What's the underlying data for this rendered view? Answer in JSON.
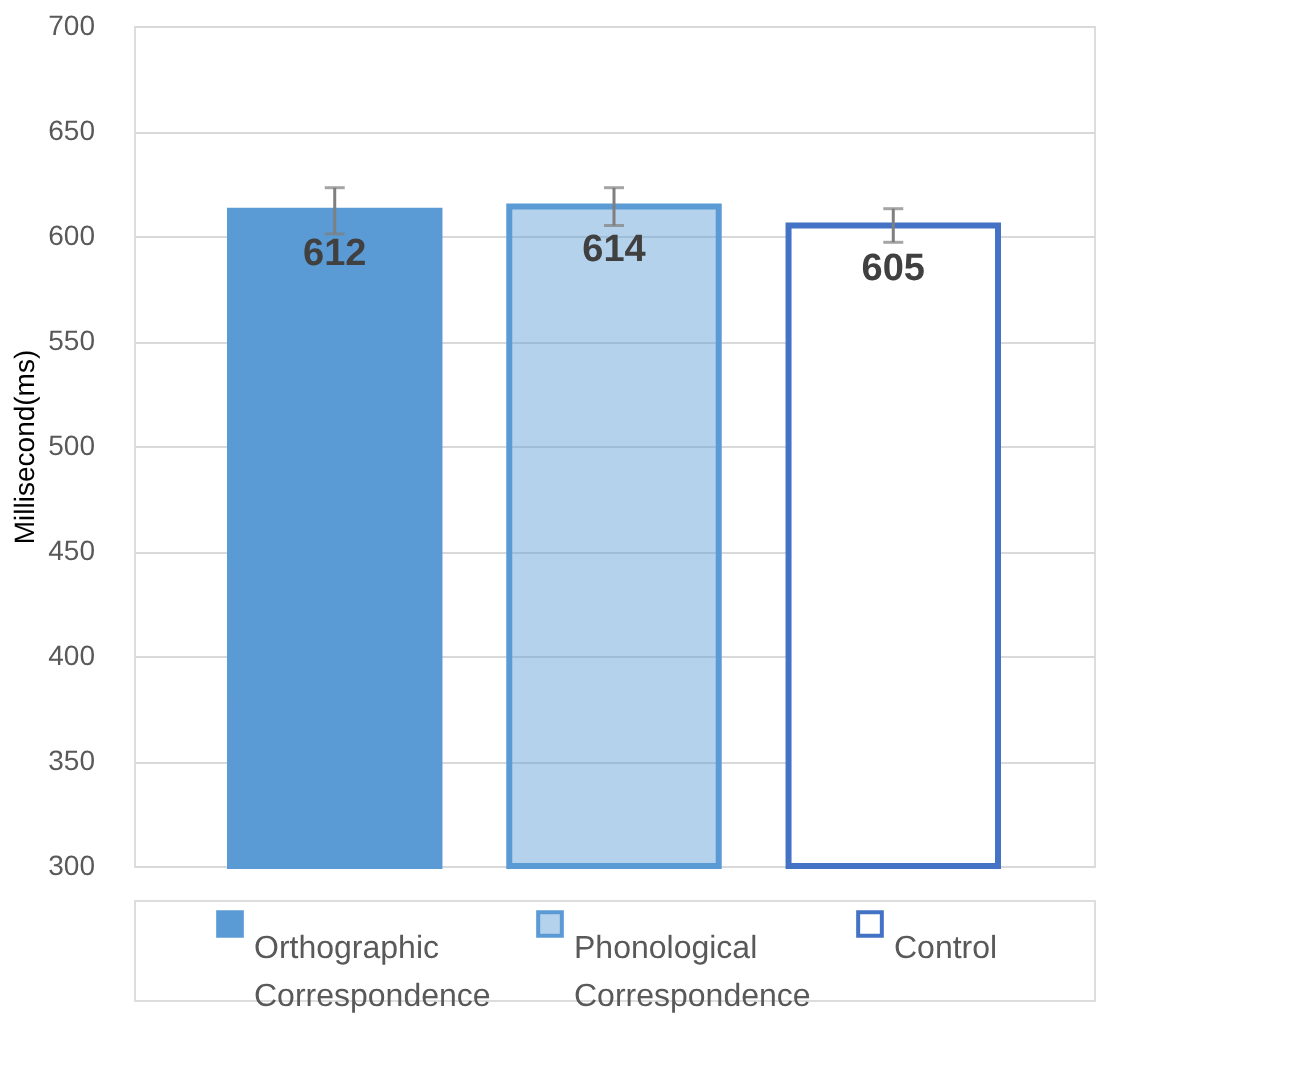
{
  "chart_data": {
    "type": "bar",
    "ylabel": "Millisecond(ms)",
    "categories": [
      null
    ],
    "series": [
      {
        "name": "Orthographic Correspondence",
        "color": "#5b9bd5",
        "values": [
          612
        ],
        "errors": [
          11
        ]
      },
      {
        "name": "Phonological Correspondence",
        "color": "#5b9bd5",
        "values": [
          614
        ],
        "errors": [
          9
        ]
      },
      {
        "name": "Control",
        "color": "#4472c4",
        "values": [
          605
        ],
        "errors": [
          8
        ]
      }
    ],
    "ylim": [
      300,
      700
    ],
    "yticks": [
      300,
      350,
      400,
      450,
      500,
      550,
      600,
      650,
      700
    ],
    "grid": "y",
    "legend": "bottom",
    "data_labels": true
  }
}
